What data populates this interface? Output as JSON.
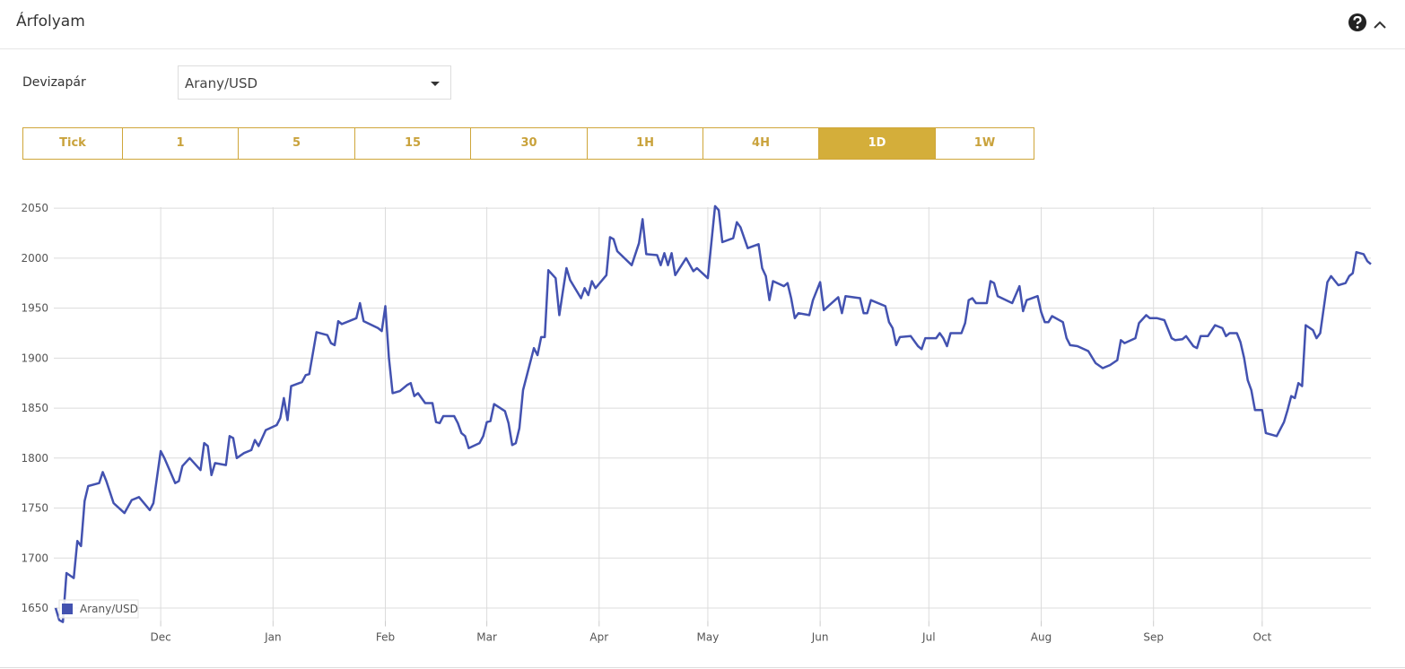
{
  "header": {
    "title": "Árfolyam"
  },
  "form": {
    "label": "Devizapár",
    "select": "Arany/USD"
  },
  "timeframes": {
    "buttons": [
      "Tick",
      "1",
      "5",
      "15",
      "30",
      "1H",
      "4H",
      "1D",
      "1W"
    ],
    "active_index": 7
  },
  "chart_data": {
    "type": "line",
    "grid": true,
    "x": [
      0,
      1,
      2,
      3,
      5,
      6,
      7,
      8,
      9,
      12,
      13,
      14,
      16,
      19,
      21,
      23,
      26,
      27,
      29,
      30,
      33,
      34,
      35,
      37,
      40,
      41,
      42,
      43,
      44,
      47,
      48,
      49,
      50,
      52,
      54,
      55,
      56,
      58,
      61,
      62,
      63,
      64,
      65,
      68,
      69,
      70,
      72,
      75,
      76,
      77,
      78,
      79,
      83,
      84,
      85,
      89,
      90,
      91,
      92,
      93,
      95,
      97,
      98,
      99,
      100,
      102,
      104,
      105,
      106,
      107,
      110,
      111,
      112,
      113,
      114,
      117,
      118,
      119,
      120,
      121,
      124,
      125,
      126,
      127,
      128,
      129,
      132,
      133,
      134,
      135,
      136,
      138,
      139,
      140,
      141,
      142,
      145,
      146,
      147,
      148,
      149,
      152,
      153,
      154,
      155,
      159,
      161,
      162,
      163,
      166,
      167,
      168,
      169,
      170,
      171,
      174,
      176,
      177,
      180,
      182,
      183,
      184,
      187,
      188,
      189,
      191,
      194,
      195,
      196,
      197,
      198,
      201,
      202,
      203,
      204,
      205,
      208,
      209,
      211,
      212,
      216,
      217,
      218,
      222,
      223,
      224,
      225,
      229,
      230,
      231,
      232,
      233,
      236,
      238,
      239,
      240,
      243,
      244,
      245,
      246,
      247,
      250,
      251,
      252,
      253,
      254,
      257,
      258,
      259,
      260,
      264,
      266,
      267,
      268,
      271,
      272,
      273,
      274,
      275,
      278,
      279,
      280,
      282,
      285,
      287,
      289,
      291,
      293,
      294,
      295,
      298,
      299,
      301,
      302,
      304,
      306,
      308,
      309,
      311,
      312,
      314,
      315,
      316,
      318,
      320,
      322,
      323,
      324,
      326,
      327,
      328,
      329,
      330,
      331,
      333,
      334,
      337,
      339,
      340,
      341,
      342,
      343,
      344,
      345,
      347,
      348,
      349,
      351,
      352,
      354,
      356,
      357,
      358,
      359,
      361,
      362,
      363
    ],
    "series": [
      {
        "name": "Arany/USD",
        "color": "#4352b0",
        "values": [
          1650,
          1638,
          1636,
          1685,
          1680,
          1717,
          1712,
          1757,
          1772,
          1775,
          1786,
          1777,
          1755,
          1745,
          1758,
          1761,
          1748,
          1755,
          1807,
          1800,
          1775,
          1777,
          1792,
          1800,
          1788,
          1815,
          1812,
          1783,
          1795,
          1793,
          1822,
          1820,
          1800,
          1805,
          1808,
          1818,
          1812,
          1828,
          1833,
          1840,
          1860,
          1838,
          1872,
          1876,
          1883,
          1884,
          1926,
          1923,
          1915,
          1913,
          1937,
          1934,
          1940,
          1955,
          1937,
          1930,
          1927,
          1952,
          1900,
          1865,
          1867,
          1873,
          1875,
          1862,
          1865,
          1855,
          1855,
          1836,
          1835,
          1842,
          1842,
          1835,
          1825,
          1822,
          1810,
          1815,
          1822,
          1836,
          1837,
          1854,
          1847,
          1835,
          1813,
          1815,
          1830,
          1868,
          1910,
          1903,
          1921,
          1921,
          1988,
          1980,
          1943,
          1967,
          1990,
          1978,
          1960,
          1970,
          1963,
          1977,
          1970,
          1983,
          2021,
          2019,
          2007,
          1993,
          2015,
          2039,
          2004,
          2003,
          1993,
          2005,
          1993,
          2005,
          1983,
          2000,
          1987,
          1990,
          1980,
          2052,
          2048,
          2016,
          2020,
          2036,
          2031,
          2010,
          2014,
          1990,
          1982,
          1958,
          1977,
          1972,
          1975,
          1960,
          1940,
          1945,
          1943,
          1958,
          1976,
          1948,
          1961,
          1945,
          1962,
          1960,
          1945,
          1945,
          1958,
          1952,
          1936,
          1930,
          1913,
          1921,
          1922,
          1912,
          1909,
          1920,
          1920,
          1925,
          1920,
          1912,
          1925,
          1925,
          1935,
          1958,
          1960,
          1955,
          1955,
          1977,
          1975,
          1962,
          1955,
          1972,
          1947,
          1958,
          1962,
          1946,
          1936,
          1936,
          1942,
          1936,
          1920,
          1913,
          1912,
          1907,
          1895,
          1890,
          1893,
          1898,
          1918,
          1915,
          1920,
          1935,
          1943,
          1940,
          1940,
          1938,
          1920,
          1918,
          1919,
          1922,
          1912,
          1910,
          1922,
          1922,
          1933,
          1930,
          1922,
          1925,
          1925,
          1916,
          1900,
          1878,
          1868,
          1848,
          1848,
          1825,
          1822,
          1836,
          1848,
          1862,
          1860,
          1875,
          1872,
          1933,
          1928,
          1920,
          1925,
          1976,
          1982,
          1973,
          1975,
          1982,
          1985,
          2006,
          2004,
          1997,
          1994
        ]
      }
    ],
    "xlim": [
      0,
      363
    ],
    "xticks": [
      {
        "value": 29,
        "label": "Dec"
      },
      {
        "value": 60,
        "label": "Jan"
      },
      {
        "value": 91,
        "label": "Feb"
      },
      {
        "value": 119,
        "label": "Mar"
      },
      {
        "value": 150,
        "label": "Apr"
      },
      {
        "value": 180,
        "label": "May"
      },
      {
        "value": 211,
        "label": "Jun"
      },
      {
        "value": 241,
        "label": "Jul"
      },
      {
        "value": 272,
        "label": "Aug"
      },
      {
        "value": 303,
        "label": "Sep"
      },
      {
        "value": 333,
        "label": "Oct"
      }
    ],
    "ylim": [
      1637,
      2060
    ],
    "yticks": [
      1650,
      1700,
      1750,
      1800,
      1850,
      1900,
      1950,
      2000,
      2050
    ]
  }
}
